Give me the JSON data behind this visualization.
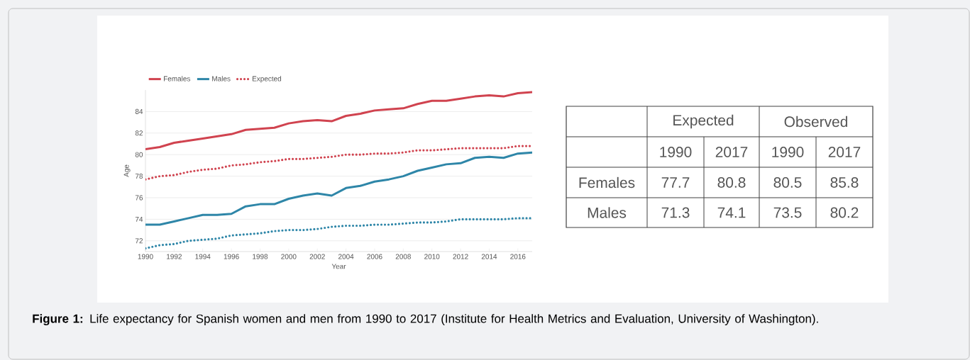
{
  "chart_data": [
    {
      "type": "line",
      "xlabel": "Year",
      "ylabel": "Age",
      "legend": "top left",
      "grid": "y",
      "annotations": [
        "**Figure 1:** Life expectancy for Spanish women and men from 1990 to 2017 (Institute for Health Metrics and Evaluation, University of Washington)."
      ],
      "x": [
        1990,
        1991,
        1992,
        1993,
        1994,
        1995,
        1996,
        1997,
        1998,
        1999,
        2000,
        2001,
        2002,
        2003,
        2004,
        2005,
        2006,
        2007,
        2008,
        2009,
        2010,
        2011,
        2012,
        2013,
        2014,
        2015,
        2016,
        2017
      ],
      "xlim": [
        1990,
        2017
      ],
      "xticks": [
        1990,
        1992,
        1994,
        1996,
        1998,
        2000,
        2002,
        2004,
        2006,
        2008,
        2010,
        2012,
        2014,
        2016
      ],
      "ylim": [
        71,
        86
      ],
      "yticks": [
        72,
        74,
        76,
        78,
        80,
        82,
        84
      ],
      "series": [
        {
          "name": "Females",
          "color": "#d0434f",
          "line_style": "solid",
          "values": [
            80.5,
            80.7,
            81.1,
            81.3,
            81.5,
            81.7,
            81.9,
            82.3,
            82.4,
            82.5,
            82.9,
            83.1,
            83.2,
            83.1,
            83.6,
            83.8,
            84.1,
            84.2,
            84.3,
            84.7,
            85.0,
            85.0,
            85.2,
            85.4,
            85.5,
            85.4,
            85.7,
            85.8
          ]
        },
        {
          "name": "Males",
          "color": "#2e86a8",
          "line_style": "solid",
          "values": [
            73.5,
            73.5,
            73.8,
            74.1,
            74.4,
            74.4,
            74.5,
            75.2,
            75.4,
            75.4,
            75.9,
            76.2,
            76.4,
            76.2,
            76.9,
            77.1,
            77.5,
            77.7,
            78.0,
            78.5,
            78.8,
            79.1,
            79.2,
            79.7,
            79.8,
            79.7,
            80.1,
            80.2
          ]
        },
        {
          "name": "Expected",
          "color": "#d0434f",
          "line_style": "dotted",
          "values": [
            77.7,
            78.0,
            78.1,
            78.4,
            78.6,
            78.7,
            79.0,
            79.1,
            79.3,
            79.4,
            79.6,
            79.6,
            79.7,
            79.8,
            80.0,
            80.0,
            80.1,
            80.1,
            80.2,
            80.4,
            80.4,
            80.5,
            80.6,
            80.6,
            80.6,
            80.6,
            80.8,
            80.8
          ]
        },
        {
          "color": "#2e86a8",
          "line_style": "dotted",
          "values": [
            71.3,
            71.6,
            71.7,
            72.0,
            72.1,
            72.2,
            72.5,
            72.6,
            72.7,
            72.9,
            73.0,
            73.0,
            73.1,
            73.3,
            73.4,
            73.4,
            73.5,
            73.5,
            73.6,
            73.7,
            73.7,
            73.8,
            74.0,
            74.0,
            74.0,
            74.0,
            74.1,
            74.1
          ]
        }
      ]
    },
    {
      "type": "other",
      "annotations": [
        "Expected",
        "Observed",
        "1990",
        "2017",
        "1990",
        "2017",
        "Females",
        "77.7",
        "80.8",
        "80.5",
        "85.8",
        "Males",
        "71.3",
        "74.1",
        "73.5",
        "80.2"
      ]
    }
  ]
}
